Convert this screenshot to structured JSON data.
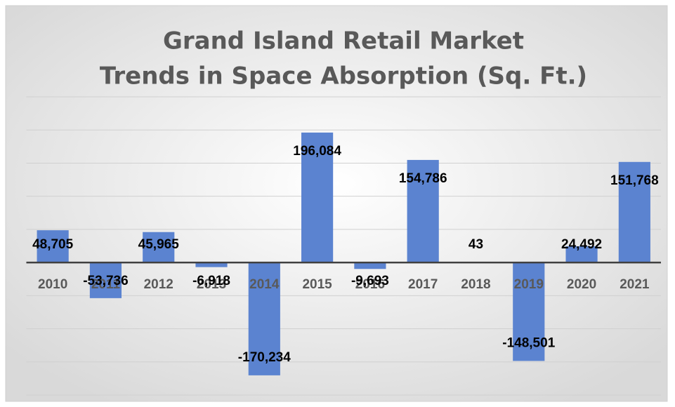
{
  "chart_data": {
    "type": "bar",
    "title": [
      "Grand Island Retail Market",
      "Trends in Space Absorption (Sq. Ft.)"
    ],
    "categories": [
      "2010",
      "2011",
      "2012",
      "2013",
      "2014",
      "2015",
      "2016",
      "2017",
      "2018",
      "2019",
      "2020",
      "2021"
    ],
    "values": [
      48705,
      -53736,
      45965,
      -6918,
      -170234,
      196084,
      -9693,
      154786,
      43,
      -148501,
      24492,
      151768
    ],
    "value_labels": [
      "48,705",
      "-53,736",
      "45,965",
      "-6,918",
      "-170,234",
      "196,084",
      "-9,693",
      "154,786",
      "43",
      "-148,501",
      "24,492",
      "151,768"
    ],
    "color": "#5b83d0",
    "ylim": [
      -200000,
      250000
    ],
    "yticks": [
      -200000,
      -150000,
      -100000,
      -50000,
      0,
      50000,
      100000,
      150000,
      200000,
      250000
    ],
    "grid": true
  }
}
